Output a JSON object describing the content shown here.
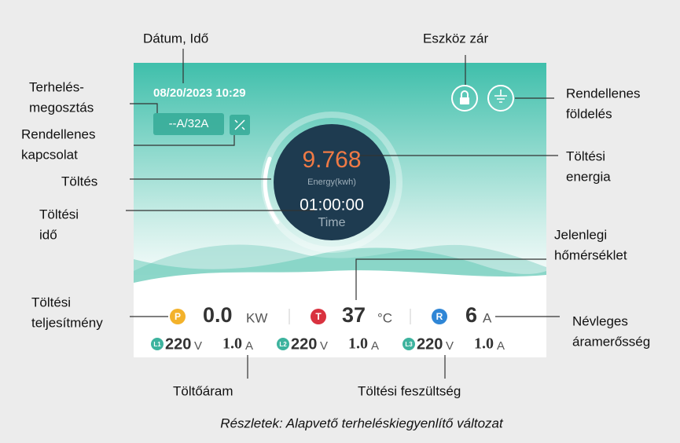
{
  "screen": {
    "datetime": "08/20/2023  10:29",
    "current_limit": "--A/32A",
    "energy_value": "9.768",
    "energy_label": "Energy(kwh)",
    "time_value": "01:00:00",
    "time_label": "Time",
    "power": {
      "icon": "P",
      "value": "0.0",
      "unit": "KW"
    },
    "temperature": {
      "icon": "T",
      "value": "37",
      "unit": "°C"
    },
    "rated_current": {
      "icon": "R",
      "value": "6",
      "unit": "A"
    },
    "phases": [
      {
        "icon": "L1",
        "voltage": "220",
        "voltage_unit": "V",
        "current": "1.0",
        "current_unit": "A"
      },
      {
        "icon": "L2",
        "voltage": "220",
        "voltage_unit": "V",
        "current": "1.0",
        "current_unit": "A"
      },
      {
        "icon": "L3",
        "voltage": "220",
        "voltage_unit": "V",
        "current": "1.0",
        "current_unit": "A"
      }
    ]
  },
  "callouts": [
    {
      "lines": [
        "Dátum, Idő"
      ]
    },
    {
      "lines": [
        "Terhelés-",
        "megosztás"
      ]
    },
    {
      "lines": [
        "Rendellenes",
        "kapcsolat"
      ]
    },
    {
      "lines": [
        "Töltés"
      ]
    },
    {
      "lines": [
        "Töltési",
        "idő"
      ]
    },
    {
      "lines": [
        "Eszköz zár"
      ]
    },
    {
      "lines": [
        "Rendellenes",
        "földelés"
      ]
    },
    {
      "lines": [
        "Töltési",
        "energia"
      ]
    },
    {
      "lines": [
        "Jelenlegi",
        "hőmérséklet"
      ]
    },
    {
      "lines": [
        "Töltési",
        "teljesítmény"
      ]
    },
    {
      "lines": [
        "Névleges",
        "áramerősség"
      ]
    },
    {
      "lines": [
        "Töltőáram"
      ]
    },
    {
      "lines": [
        "Töltési feszültség"
      ]
    }
  ],
  "caption": "Részletek: Alapvető terheléskiegyenlítő változat"
}
